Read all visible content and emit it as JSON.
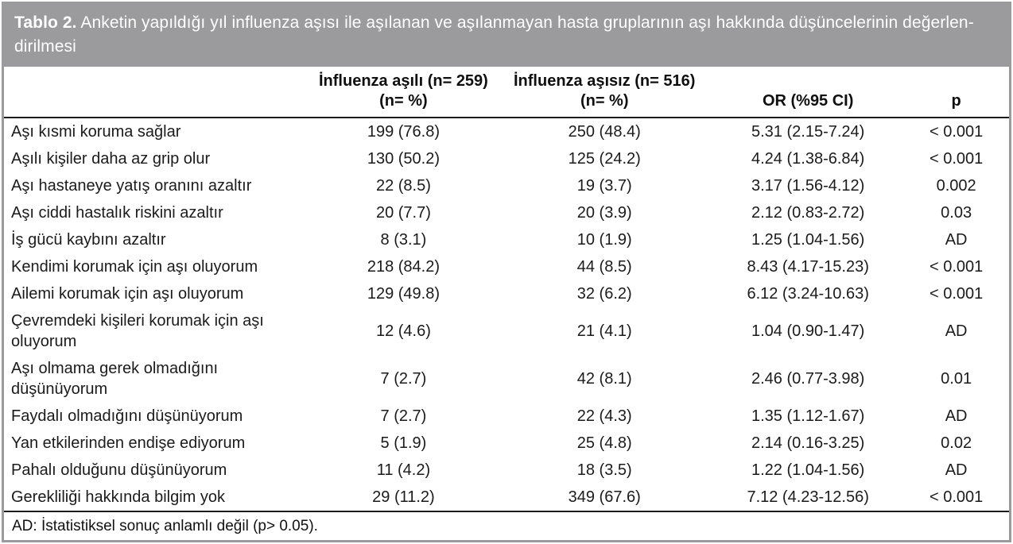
{
  "title": {
    "label": "Tablo 2.",
    "text": " Anketin yapıldığı yıl influenza aşısı ile aşılanan ve aşılanmayan hasta gruplarının aşı hakkında düşüncelerinin değerlen-dirilmesi"
  },
  "colors": {
    "header_bar": "#9b9b9d",
    "rule": "#1c1c1c",
    "text": "#1b1b1b",
    "title_text": "#ffffff"
  },
  "table": {
    "columns": {
      "row_label": "",
      "vaccinated": {
        "line1": "İnfluenza aşılı (n= 259)",
        "line2": "(n= %)"
      },
      "unvaccinated": {
        "line1": "İnfluenza aşısız (n= 516)",
        "line2": "(n= %)"
      },
      "or_ci": "OR (%95 CI)",
      "p": "p"
    },
    "rows": [
      {
        "label": "Aşı kısmi koruma sağlar",
        "vaccinated": "199 (76.8)",
        "unvaccinated": "250 (48.4)",
        "or_ci": "5.31 (2.15-7.24)",
        "p": "< 0.001"
      },
      {
        "label": "Aşılı kişiler daha az grip olur",
        "vaccinated": "130 (50.2)",
        "unvaccinated": "125 (24.2)",
        "or_ci": "4.24 (1.38-6.84)",
        "p": "< 0.001"
      },
      {
        "label": "Aşı hastaneye yatış oranını azaltır",
        "vaccinated": "22 (8.5)",
        "unvaccinated": "19 (3.7)",
        "or_ci": "3.17 (1.56-4.12)",
        "p": "0.002"
      },
      {
        "label": "Aşı ciddi hastalık riskini azaltır",
        "vaccinated": "20 (7.7)",
        "unvaccinated": "20 (3.9)",
        "or_ci": "2.12 (0.83-2.72)",
        "p": "0.03"
      },
      {
        "label": "İş gücü kaybını azaltır",
        "vaccinated": "8 (3.1)",
        "unvaccinated": "10 (1.9)",
        "or_ci": "1.25 (1.04-1.56)",
        "p": "AD"
      },
      {
        "label": "Kendimi korumak için aşı oluyorum",
        "vaccinated": "218 (84.2)",
        "unvaccinated": "44 (8.5)",
        "or_ci": "8.43 (4.17-15.23)",
        "p": "< 0.001"
      },
      {
        "label": "Ailemi korumak için aşı oluyorum",
        "vaccinated": "129 (49.8)",
        "unvaccinated": "32 (6.2)",
        "or_ci": "6.12 (3.24-10.63)",
        "p": "< 0.001"
      },
      {
        "label": "Çevremdeki kişileri korumak için aşı oluyorum",
        "vaccinated": "12 (4.6)",
        "unvaccinated": "21 (4.1)",
        "or_ci": "1.04 (0.90-1.47)",
        "p": "AD"
      },
      {
        "label": "Aşı olmama gerek olmadığını düşünüyorum",
        "vaccinated": "7 (2.7)",
        "unvaccinated": "42 (8.1)",
        "or_ci": "2.46 (0.77-3.98)",
        "p": "0.01"
      },
      {
        "label": "Faydalı olmadığını düşünüyorum",
        "vaccinated": "7 (2.7)",
        "unvaccinated": "22 (4.3)",
        "or_ci": "1.35 (1.12-1.67)",
        "p": "AD"
      },
      {
        "label": "Yan etkilerinden endişe ediyorum",
        "vaccinated": "5 (1.9)",
        "unvaccinated": "25 (4.8)",
        "or_ci": "2.14 (0.16-3.25)",
        "p": "0.02"
      },
      {
        "label": "Pahalı olduğunu düşünüyorum",
        "vaccinated": "11 (4.2)",
        "unvaccinated": "18 (3.5)",
        "or_ci": "1.22 (1.04-1.56)",
        "p": "AD"
      },
      {
        "label": "Gerekliliği hakkında bilgim yok",
        "vaccinated": "29 (11.2)",
        "unvaccinated": "349 (67.6)",
        "or_ci": "7.12 (4.23-12.56)",
        "p": "< 0.001"
      }
    ]
  },
  "footnote": "AD: İstatistiksel sonuç anlamlı değil (p> 0.05)."
}
